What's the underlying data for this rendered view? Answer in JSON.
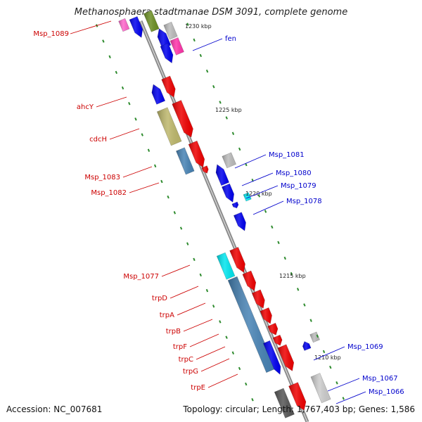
{
  "title": "Methanosphaera stadtmanae DSM 3091, complete genome",
  "footer": {
    "accession": "Accession: NC_007681",
    "summary": "Topology: circular; Length: 1,767,403 bp; Genes: 1,586"
  },
  "colors": {
    "backbone": "#8a8a8a",
    "forward_label": "#cc0000",
    "reverse_label": "#0000cc",
    "tick": "#2e8b2e"
  },
  "ticks": [
    "1230 kbp",
    "1225 kbp",
    "1220 kbp",
    "1215 kbp",
    "1210 kbp"
  ],
  "labels_left": [
    "Msp_1089",
    "ahcY",
    "cdcH",
    "Msp_1083",
    "Msp_1082",
    "Msp_1077",
    "trpD",
    "trpA",
    "trpB",
    "trpF",
    "trpC",
    "trpG",
    "trpE"
  ],
  "labels_right": [
    "fen",
    "Msp_1081",
    "Msp_1080",
    "Msp_1079",
    "Msp_1078",
    "Msp_1069",
    "Msp_1067",
    "Msp_1066"
  ]
}
